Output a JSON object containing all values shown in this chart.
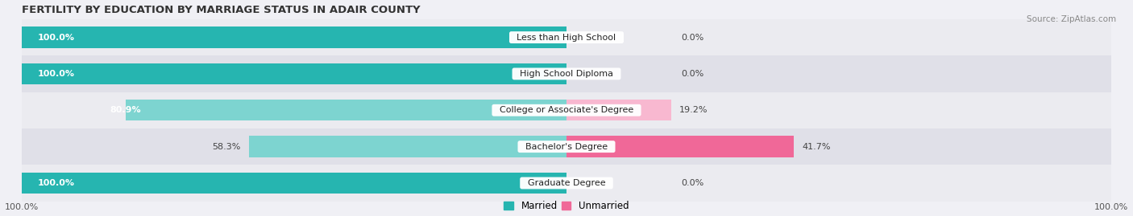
{
  "title": "FERTILITY BY EDUCATION BY MARRIAGE STATUS IN ADAIR COUNTY",
  "source": "Source: ZipAtlas.com",
  "categories": [
    "Less than High School",
    "High School Diploma",
    "College or Associate's Degree",
    "Bachelor's Degree",
    "Graduate Degree"
  ],
  "married_pct": [
    100.0,
    100.0,
    80.9,
    58.3,
    100.0
  ],
  "unmarried_pct": [
    0.0,
    0.0,
    19.2,
    41.7,
    0.0
  ],
  "married_color_full": "#26b5b0",
  "married_color_light": "#7dd4d0",
  "unmarried_color_full": "#f06898",
  "unmarried_color_light": "#f8b8d0",
  "row_bg_color_odd": "#ebebf0",
  "row_bg_color_even": "#e0e0e8",
  "title_fontsize": 9.5,
  "label_fontsize": 8.0,
  "tick_fontsize": 8,
  "source_fontsize": 7.5,
  "fig_width": 14.06,
  "fig_height": 2.69,
  "dpi": 100
}
